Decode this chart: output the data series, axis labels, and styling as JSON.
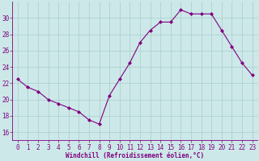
{
  "x": [
    0,
    1,
    2,
    3,
    4,
    5,
    6,
    7,
    8,
    9,
    10,
    11,
    12,
    13,
    14,
    15,
    16,
    17,
    18,
    19,
    20,
    21,
    22,
    23
  ],
  "y": [
    22.5,
    21.5,
    21.0,
    20.0,
    19.5,
    19.0,
    18.5,
    17.5,
    17.0,
    20.5,
    22.5,
    24.5,
    27.0,
    28.5,
    29.5,
    29.5,
    31.0,
    30.5,
    30.5,
    30.5,
    28.5,
    26.5,
    24.5,
    23.0
  ],
  "line_color": "#800080",
  "marker": "D",
  "marker_size": 2.0,
  "bg_color": "#cce8e8",
  "grid_color": "#aacccc",
  "tick_color": "#800080",
  "label_color": "#800080",
  "xlabel": "Windchill (Refroidissement éolien,°C)",
  "ylim": [
    15,
    32
  ],
  "xlim": [
    -0.5,
    23.5
  ],
  "yticks": [
    16,
    18,
    20,
    22,
    24,
    26,
    28,
    30
  ],
  "xticks": [
    0,
    1,
    2,
    3,
    4,
    5,
    6,
    7,
    8,
    9,
    10,
    11,
    12,
    13,
    14,
    15,
    16,
    17,
    18,
    19,
    20,
    21,
    22,
    23
  ],
  "spine_color": "#800080",
  "axis_fontsize": 5.5,
  "tick_fontsize": 5.5
}
